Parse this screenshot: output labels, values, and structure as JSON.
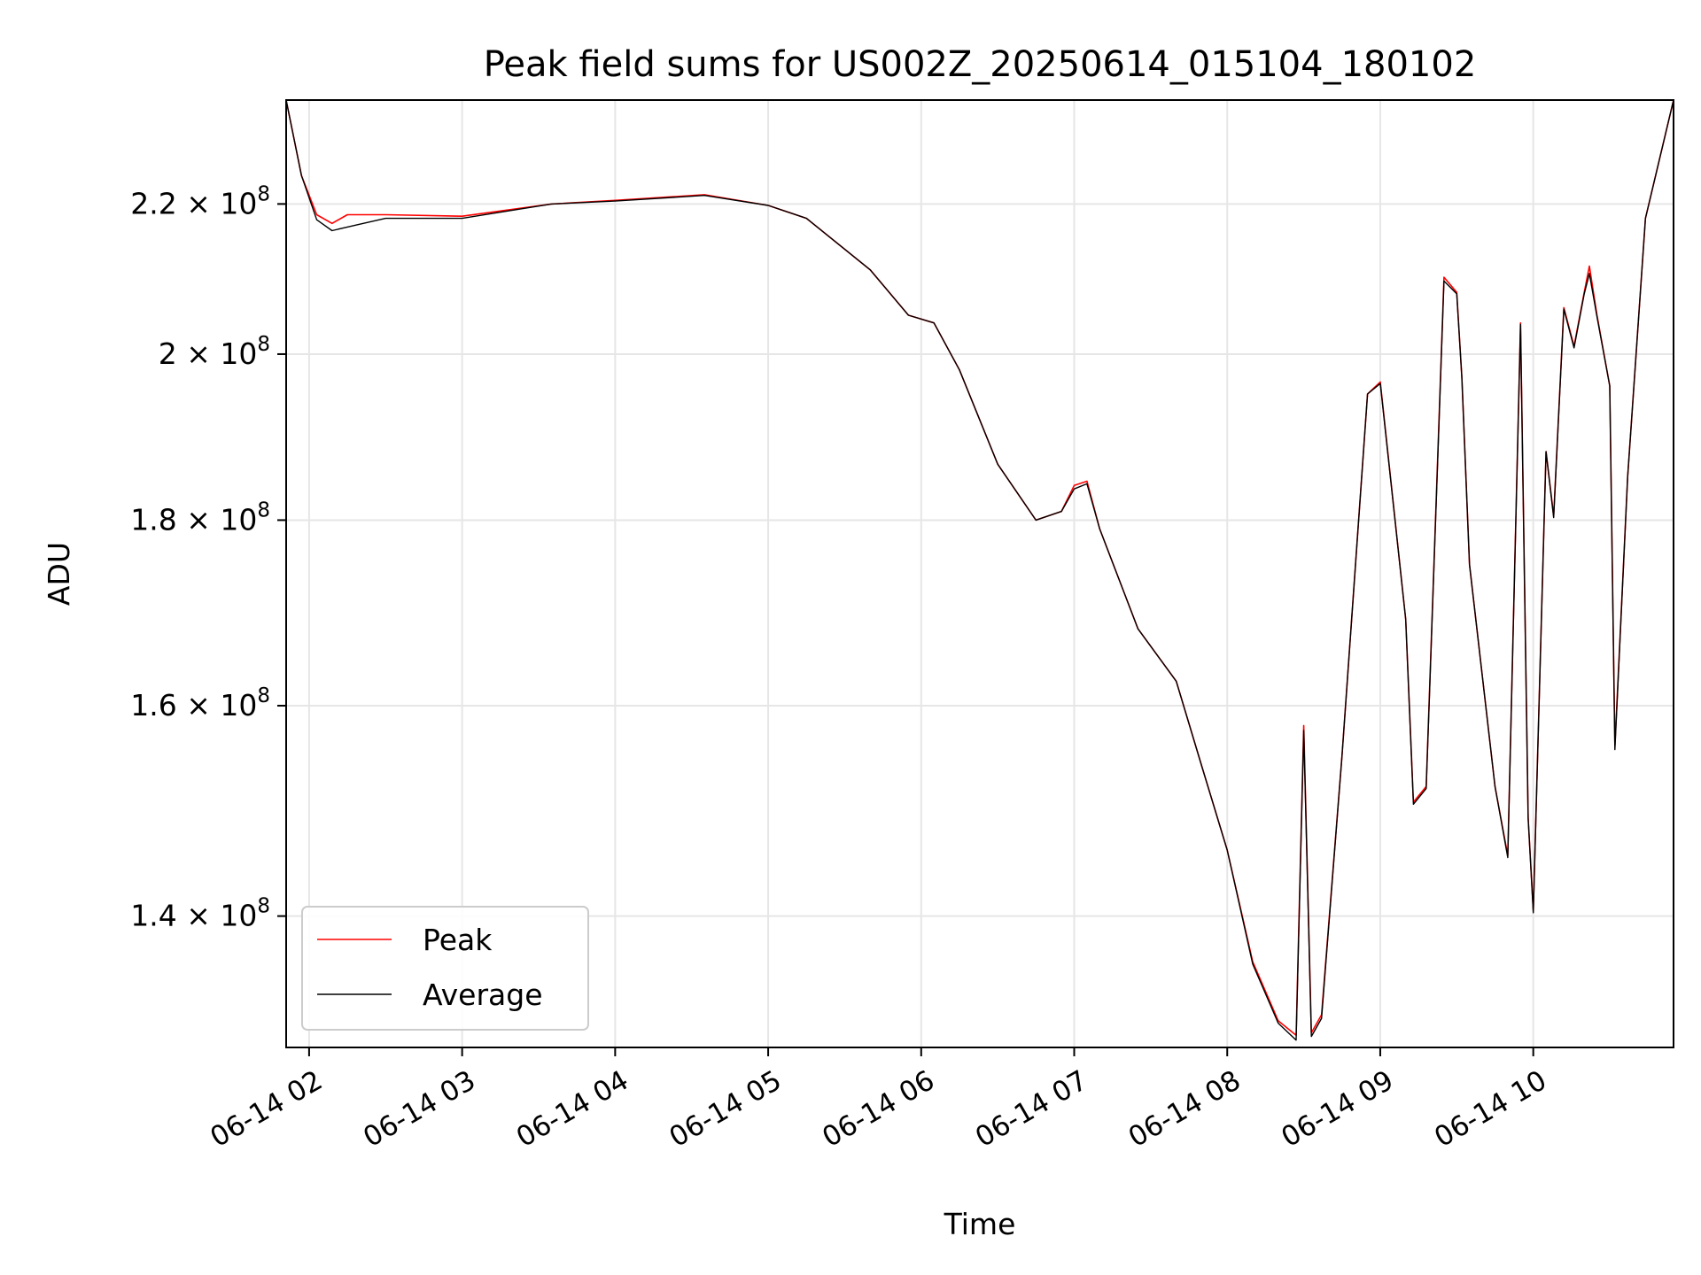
{
  "chart_data": {
    "type": "line",
    "title": "Peak field sums for US002Z_20250614_015104_180102",
    "xlabel": "Time",
    "ylabel": "ADU",
    "yscale": "log",
    "xlim": [
      "2025-06-14 01:51",
      "2025-06-14 10:55"
    ],
    "ylim": [
      128800000,
      235000000
    ],
    "grid": true,
    "legend_position": "lower-left",
    "x_ticks": [
      {
        "t": "2025-06-14 02:00",
        "label": "06-14 02"
      },
      {
        "t": "2025-06-14 03:00",
        "label": "06-14 03"
      },
      {
        "t": "2025-06-14 04:00",
        "label": "06-14 04"
      },
      {
        "t": "2025-06-14 05:00",
        "label": "06-14 05"
      },
      {
        "t": "2025-06-14 06:00",
        "label": "06-14 06"
      },
      {
        "t": "2025-06-14 07:00",
        "label": "06-14 07"
      },
      {
        "t": "2025-06-14 08:00",
        "label": "06-14 08"
      },
      {
        "t": "2025-06-14 09:00",
        "label": "06-14 09"
      },
      {
        "t": "2025-06-14 10:00",
        "label": "06-14 10"
      }
    ],
    "y_ticks": [
      {
        "value": 140000000,
        "label": "1.4 × 10^8",
        "mant": "1.4",
        "exp": "8"
      },
      {
        "value": 160000000,
        "label": "1.6 × 10^8",
        "mant": "1.6",
        "exp": "8"
      },
      {
        "value": 180000000,
        "label": "1.8 × 10^8",
        "mant": "1.8",
        "exp": "8"
      },
      {
        "value": 200000000,
        "label": "2 × 10^8",
        "mant": "2",
        "exp": "8"
      },
      {
        "value": 220000000,
        "label": "2.2 × 10^8",
        "mant": "2.2",
        "exp": "8"
      }
    ],
    "series": [
      {
        "name": "Peak",
        "color": "#ff0000",
        "points": [
          [
            "2025-06-14 01:51",
            235000000
          ],
          [
            "2025-06-14 01:57",
            224000000
          ],
          [
            "2025-06-14 02:03",
            218500000
          ],
          [
            "2025-06-14 02:09",
            217300000
          ],
          [
            "2025-06-14 02:15",
            218500000
          ],
          [
            "2025-06-14 02:30",
            218500000
          ],
          [
            "2025-06-14 03:00",
            218300000
          ],
          [
            "2025-06-14 03:35",
            220000000
          ],
          [
            "2025-06-14 04:00",
            220500000
          ],
          [
            "2025-06-14 04:35",
            221300000
          ],
          [
            "2025-06-14 05:00",
            219800000
          ],
          [
            "2025-06-14 05:15",
            218000000
          ],
          [
            "2025-06-14 05:40",
            211000000
          ],
          [
            "2025-06-14 05:55",
            205000000
          ],
          [
            "2025-06-14 06:05",
            204000000
          ],
          [
            "2025-06-14 06:15",
            198000000
          ],
          [
            "2025-06-14 06:30",
            186500000
          ],
          [
            "2025-06-14 06:45",
            180000000
          ],
          [
            "2025-06-14 06:55",
            181000000
          ],
          [
            "2025-06-14 07:00",
            184000000
          ],
          [
            "2025-06-14 07:05",
            184500000
          ],
          [
            "2025-06-14 07:10",
            179000000
          ],
          [
            "2025-06-14 07:25",
            168000000
          ],
          [
            "2025-06-14 07:40",
            162500000
          ],
          [
            "2025-06-14 07:50",
            154000000
          ],
          [
            "2025-06-14 08:00",
            146000000
          ],
          [
            "2025-06-14 08:10",
            136000000
          ],
          [
            "2025-06-14 08:20",
            131000000
          ],
          [
            "2025-06-14 08:27",
            129800000
          ],
          [
            "2025-06-14 08:30",
            158000000
          ],
          [
            "2025-06-14 08:33",
            130000000
          ],
          [
            "2025-06-14 08:37",
            131500000
          ],
          [
            "2025-06-14 08:45",
            155000000
          ],
          [
            "2025-06-14 08:55",
            195000000
          ],
          [
            "2025-06-14 09:00",
            196500000
          ],
          [
            "2025-06-14 09:10",
            169000000
          ],
          [
            "2025-06-14 09:13",
            150500000
          ],
          [
            "2025-06-14 09:18",
            152000000
          ],
          [
            "2025-06-14 09:25",
            210000000
          ],
          [
            "2025-06-14 09:30",
            208000000
          ],
          [
            "2025-06-14 09:32",
            197000000
          ],
          [
            "2025-06-14 09:35",
            175000000
          ],
          [
            "2025-06-14 09:45",
            152000000
          ],
          [
            "2025-06-14 09:50",
            145500000
          ],
          [
            "2025-06-14 09:55",
            204000000
          ],
          [
            "2025-06-14 09:58",
            149000000
          ],
          [
            "2025-06-14 10:00",
            140500000
          ],
          [
            "2025-06-14 10:05",
            188000000
          ],
          [
            "2025-06-14 10:08",
            180500000
          ],
          [
            "2025-06-14 10:12",
            206000000
          ],
          [
            "2025-06-14 10:16",
            201000000
          ],
          [
            "2025-06-14 10:20",
            208000000
          ],
          [
            "2025-06-14 10:22",
            211500000
          ],
          [
            "2025-06-14 10:25",
            205000000
          ],
          [
            "2025-06-14 10:30",
            196000000
          ],
          [
            "2025-06-14 10:32",
            156000000
          ],
          [
            "2025-06-14 10:37",
            185000000
          ],
          [
            "2025-06-14 10:44",
            218000000
          ],
          [
            "2025-06-14 10:55",
            235000000
          ]
        ]
      },
      {
        "name": "Average",
        "color": "#000000",
        "points": [
          [
            "2025-06-14 01:51",
            235000000
          ],
          [
            "2025-06-14 01:57",
            224000000
          ],
          [
            "2025-06-14 02:03",
            217800000
          ],
          [
            "2025-06-14 02:09",
            216300000
          ],
          [
            "2025-06-14 02:15",
            216800000
          ],
          [
            "2025-06-14 02:30",
            218000000
          ],
          [
            "2025-06-14 03:00",
            218000000
          ],
          [
            "2025-06-14 03:35",
            220000000
          ],
          [
            "2025-06-14 04:00",
            220400000
          ],
          [
            "2025-06-14 04:35",
            221200000
          ],
          [
            "2025-06-14 05:00",
            219800000
          ],
          [
            "2025-06-14 05:15",
            218000000
          ],
          [
            "2025-06-14 05:40",
            211000000
          ],
          [
            "2025-06-14 05:55",
            205000000
          ],
          [
            "2025-06-14 06:05",
            204000000
          ],
          [
            "2025-06-14 06:15",
            198000000
          ],
          [
            "2025-06-14 06:30",
            186500000
          ],
          [
            "2025-06-14 06:45",
            180000000
          ],
          [
            "2025-06-14 06:55",
            181000000
          ],
          [
            "2025-06-14 07:00",
            183600000
          ],
          [
            "2025-06-14 07:05",
            184200000
          ],
          [
            "2025-06-14 07:10",
            179000000
          ],
          [
            "2025-06-14 07:25",
            168000000
          ],
          [
            "2025-06-14 07:40",
            162500000
          ],
          [
            "2025-06-14 07:50",
            154000000
          ],
          [
            "2025-06-14 08:00",
            146000000
          ],
          [
            "2025-06-14 08:10",
            135800000
          ],
          [
            "2025-06-14 08:20",
            130800000
          ],
          [
            "2025-06-14 08:27",
            129400000
          ],
          [
            "2025-06-14 08:30",
            157500000
          ],
          [
            "2025-06-14 08:33",
            129700000
          ],
          [
            "2025-06-14 08:37",
            131200000
          ],
          [
            "2025-06-14 08:45",
            155000000
          ],
          [
            "2025-06-14 08:55",
            195000000
          ],
          [
            "2025-06-14 09:00",
            196300000
          ],
          [
            "2025-06-14 09:10",
            169000000
          ],
          [
            "2025-06-14 09:13",
            150300000
          ],
          [
            "2025-06-14 09:18",
            151800000
          ],
          [
            "2025-06-14 09:25",
            209500000
          ],
          [
            "2025-06-14 09:30",
            207800000
          ],
          [
            "2025-06-14 09:32",
            197000000
          ],
          [
            "2025-06-14 09:35",
            175000000
          ],
          [
            "2025-06-14 09:45",
            152000000
          ],
          [
            "2025-06-14 09:50",
            145300000
          ],
          [
            "2025-06-14 09:55",
            203800000
          ],
          [
            "2025-06-14 09:58",
            149000000
          ],
          [
            "2025-06-14 10:00",
            140300000
          ],
          [
            "2025-06-14 10:05",
            188000000
          ],
          [
            "2025-06-14 10:08",
            180300000
          ],
          [
            "2025-06-14 10:12",
            205800000
          ],
          [
            "2025-06-14 10:16",
            200800000
          ],
          [
            "2025-06-14 10:20",
            207800000
          ],
          [
            "2025-06-14 10:22",
            210500000
          ],
          [
            "2025-06-14 10:25",
            204800000
          ],
          [
            "2025-06-14 10:30",
            196000000
          ],
          [
            "2025-06-14 10:32",
            155600000
          ],
          [
            "2025-06-14 10:37",
            185000000
          ],
          [
            "2025-06-14 10:44",
            218000000
          ],
          [
            "2025-06-14 10:55",
            235000000
          ]
        ]
      }
    ]
  }
}
